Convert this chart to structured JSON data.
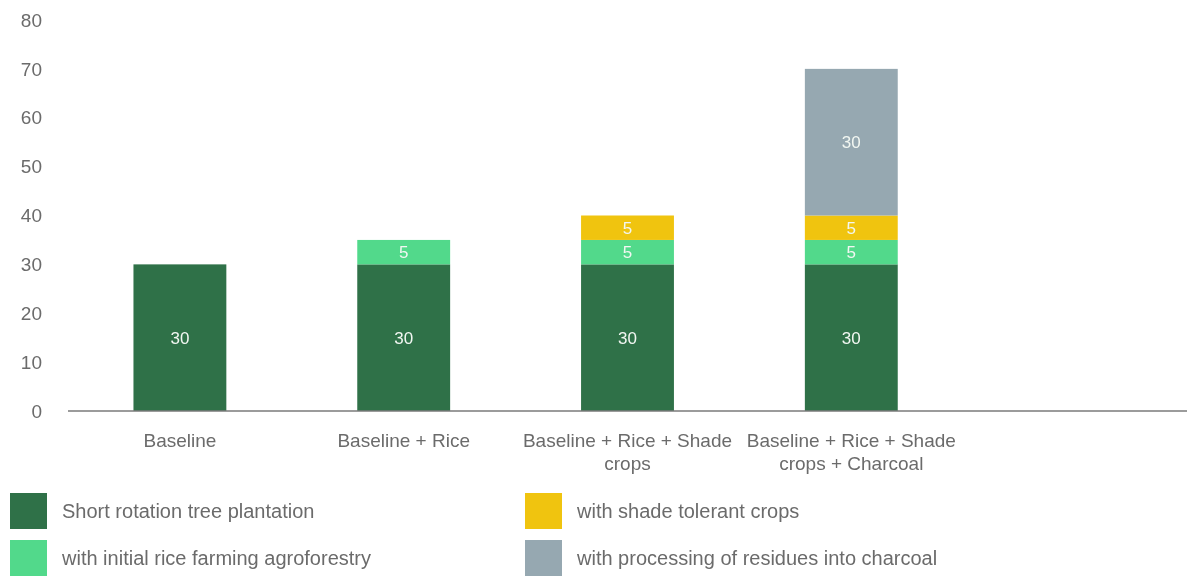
{
  "chart_data": {
    "type": "bar",
    "stacked": true,
    "categories": [
      "Baseline",
      "Baseline + Rice",
      "Baseline + Rice + Shade crops",
      "Baseline + Rice + Shade crops + Charcoal",
      null
    ],
    "series": [
      {
        "name": "Short rotation tree plantation",
        "color": "#2f7148",
        "values": [
          30,
          30,
          30,
          30,
          null
        ]
      },
      {
        "name": "with initial rice farming agroforestry",
        "color": "#52d98b",
        "values": [
          null,
          5,
          5,
          5,
          null
        ]
      },
      {
        "name": "with shade tolerant crops",
        "color": "#f0c40f",
        "values": [
          null,
          null,
          5,
          5,
          null
        ]
      },
      {
        "name": "with processing of residues into charcoal",
        "color": "#96a8b1",
        "values": [
          null,
          null,
          null,
          30,
          null
        ]
      }
    ],
    "ylim": [
      0,
      80
    ],
    "yticks": [
      0,
      10,
      20,
      30,
      40,
      50,
      60,
      70,
      80
    ],
    "legend": "bottom",
    "data_labels": true
  }
}
